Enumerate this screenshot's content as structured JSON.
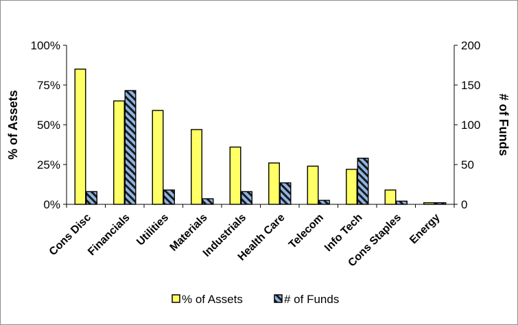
{
  "chart_data": {
    "type": "bar",
    "categories": [
      "Cons Disc",
      "Financials",
      "Utilities",
      "Materials",
      "Industrials",
      "Health Care",
      "Telecom",
      "Info Tech",
      "Cons Staples",
      "Energy"
    ],
    "series": [
      {
        "name": "% of Assets",
        "axis": "left",
        "color": "#ffff66",
        "values": [
          85,
          65,
          59,
          47,
          36,
          26,
          24,
          22,
          9,
          1
        ]
      },
      {
        "name": "# of Funds",
        "axis": "right",
        "color": "#8fb4e3",
        "pattern": "diagonal-hatch",
        "values": [
          16,
          143,
          18,
          7,
          16,
          27,
          5,
          58,
          4,
          2
        ]
      }
    ],
    "y_left": {
      "label": "% of Assets",
      "ylim": [
        0,
        100
      ],
      "ticks": [
        0,
        25,
        50,
        75,
        100
      ],
      "tick_labels": [
        "0%",
        "25%",
        "50%",
        "75%",
        "100%"
      ]
    },
    "y_right": {
      "label": "# of Funds",
      "ylim": [
        0,
        200
      ],
      "ticks": [
        0,
        50,
        100,
        150,
        200
      ],
      "tick_labels": [
        "0",
        "50",
        "100",
        "150",
        "200"
      ]
    },
    "grid": false,
    "legend": {
      "position": "bottom",
      "entries": [
        "% of Assets",
        "# of Funds"
      ]
    }
  }
}
